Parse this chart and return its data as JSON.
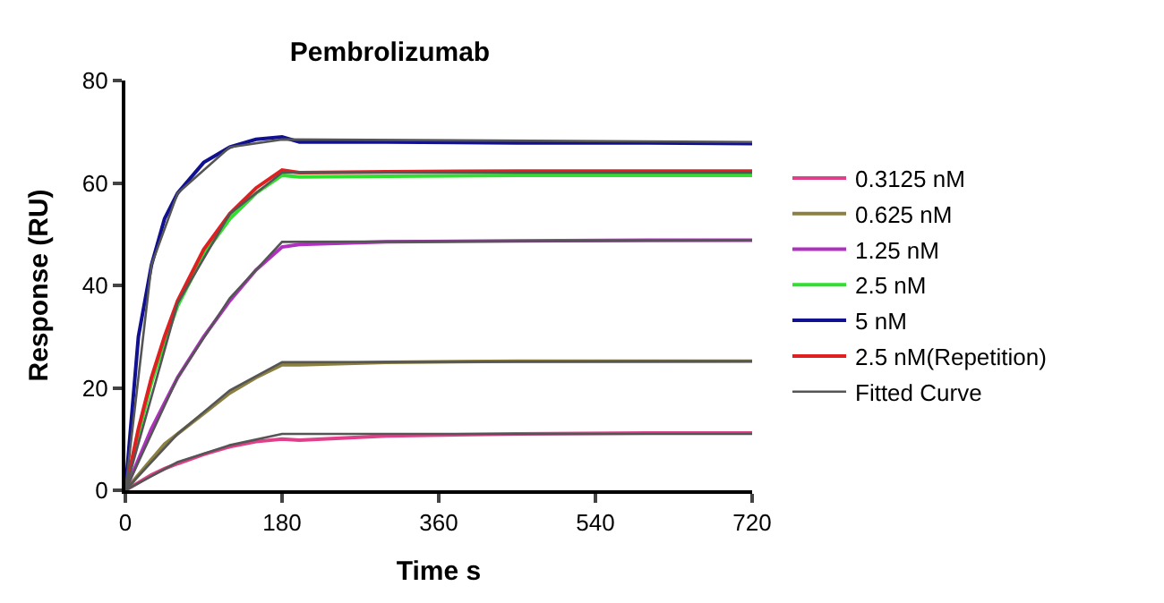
{
  "chart_data": {
    "type": "line",
    "title": "Pembrolizumab",
    "xlabel": "Time s",
    "ylabel": "Response (RU)",
    "x": [
      0,
      15,
      30,
      45,
      60,
      90,
      120,
      150,
      180,
      200,
      300,
      450,
      600,
      720
    ],
    "series": [
      {
        "name": "0.3125 nM",
        "color": "#e0408a",
        "values": [
          0,
          1.5,
          3,
          4.2,
          5.2,
          7,
          8.5,
          9.5,
          10,
          9.8,
          10.6,
          11,
          11.2,
          11.2
        ]
      },
      {
        "name": "0.625 nM",
        "color": "#8b8040",
        "values": [
          0,
          3,
          6,
          9,
          11,
          15,
          19,
          22,
          24.5,
          24.5,
          25,
          25.2,
          25.2,
          25.2
        ]
      },
      {
        "name": "1.25 nM",
        "color": "#b030c0",
        "values": [
          0,
          6,
          12,
          17,
          22,
          30,
          37,
          43,
          47.5,
          48,
          48.5,
          48.7,
          48.8,
          48.8
        ]
      },
      {
        "name": "2.5 nM",
        "color": "#30e030",
        "values": [
          0,
          11,
          21,
          29,
          36,
          46,
          53,
          58,
          61.5,
          61.2,
          61.3,
          61.5,
          61.5,
          61.5
        ]
      },
      {
        "name": "5 nM",
        "color": "#101090",
        "values": [
          0,
          30,
          44,
          53,
          58,
          64,
          67,
          68.5,
          69,
          68,
          68,
          67.8,
          67.8,
          67.7
        ]
      },
      {
        "name": "2.5 nM(Repetition)",
        "color": "#e02020",
        "values": [
          0,
          12,
          22,
          30,
          37,
          47,
          54,
          59,
          62.5,
          62,
          62.2,
          62.3,
          62.3,
          62.3
        ]
      },
      {
        "name": "Fitted Curve",
        "color": "#555555",
        "x": [
          0,
          60,
          120,
          180,
          720
        ],
        "values": [
          0,
          5.5,
          8.8,
          11,
          11
        ]
      },
      {
        "color": "#555555",
        "x": [
          0,
          60,
          120,
          180,
          720
        ],
        "values": [
          0,
          11,
          19.5,
          25,
          25.2
        ]
      },
      {
        "color": "#555555",
        "x": [
          0,
          60,
          120,
          180,
          720
        ],
        "values": [
          0,
          22,
          37.5,
          48.5,
          48.8
        ]
      },
      {
        "color": "#555555",
        "x": [
          0,
          60,
          120,
          180,
          720
        ],
        "values": [
          0,
          36.5,
          54,
          62,
          62
        ]
      },
      {
        "color": "#555555",
        "x": [
          0,
          30,
          60,
          120,
          180,
          720
        ],
        "values": [
          0,
          44,
          58,
          67,
          68.5,
          68
        ]
      }
    ],
    "xlim": [
      0,
      720
    ],
    "xticks": [
      0,
      180,
      360,
      540,
      720
    ],
    "ylim": [
      0,
      80
    ],
    "yticks": [
      0,
      20,
      40,
      60,
      80
    ],
    "legend": "right",
    "marker": "none",
    "line_style": "solid"
  }
}
